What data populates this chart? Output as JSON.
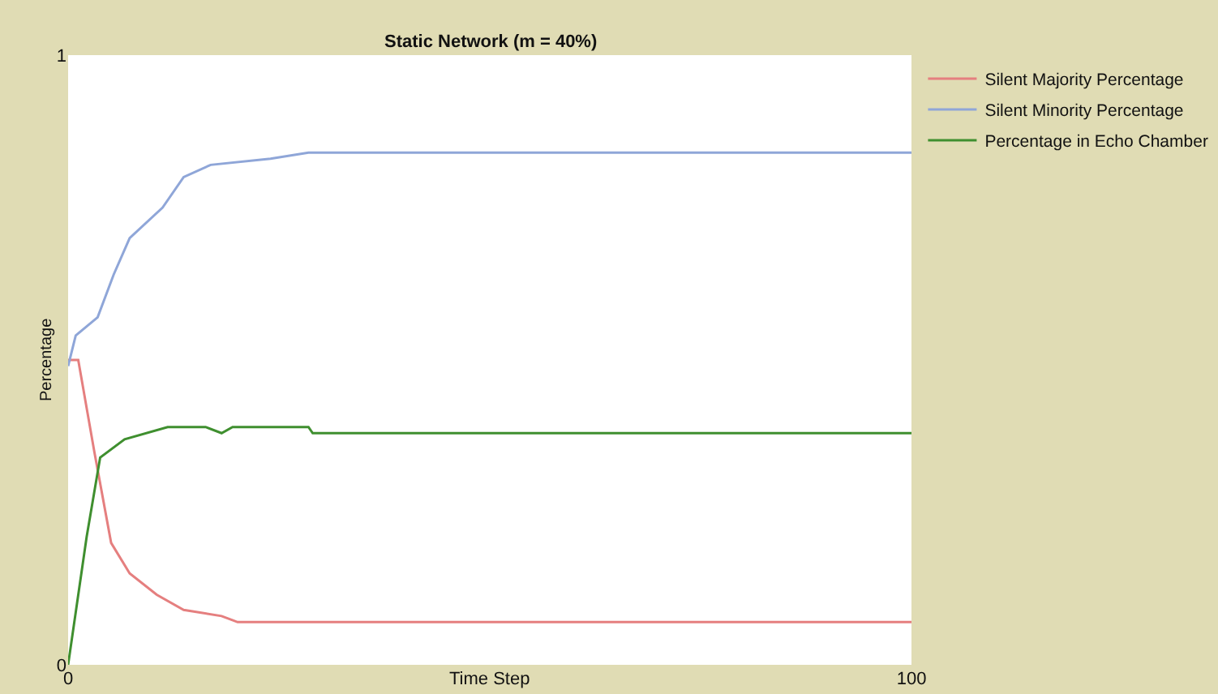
{
  "chart_data": {
    "type": "line",
    "title": "Static Network (m = 40%)",
    "xlabel": "Time Step",
    "ylabel": "Percentage",
    "xlim": [
      0,
      100
    ],
    "xticks": [
      0,
      100
    ],
    "ylim": [
      0,
      1
    ],
    "yticks": [
      0,
      1
    ],
    "legend": "right",
    "marker": "none",
    "line_style": "solid",
    "series": [
      {
        "name": "Silent Majority Percentage",
        "color": "#e57f7f",
        "x": [
          0,
          1.2,
          3.1,
          5.1,
          7.3,
          10.5,
          13.7,
          18.2,
          20.1,
          100
        ],
        "values": [
          0.5,
          0.5,
          0.35,
          0.2,
          0.15,
          0.115,
          0.09,
          0.08,
          0.07,
          0.07
        ]
      },
      {
        "name": "Silent Minority Percentage",
        "color": "#8fa6d8",
        "x": [
          0,
          0.9,
          3.5,
          5.4,
          7.3,
          11.2,
          13.7,
          16.9,
          24,
          28.5,
          100
        ],
        "values": [
          0.49,
          0.54,
          0.57,
          0.64,
          0.7,
          0.75,
          0.8,
          0.82,
          0.83,
          0.84,
          0.84
        ]
      },
      {
        "name": "Percentage in Echo Chamber",
        "color": "#3f8f2f",
        "x": [
          0,
          2.2,
          3.8,
          6.7,
          11.8,
          16.3,
          18.2,
          19.5,
          28.5,
          29,
          100
        ],
        "values": [
          0,
          0.21,
          0.34,
          0.37,
          0.39,
          0.39,
          0.38,
          0.39,
          0.39,
          0.38,
          0.38
        ]
      }
    ]
  }
}
